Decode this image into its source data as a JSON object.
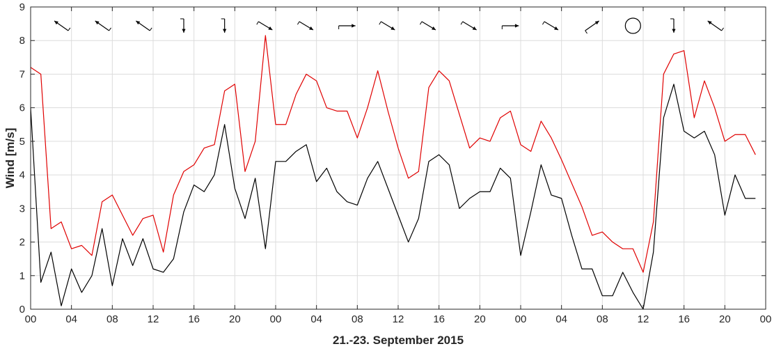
{
  "chart_data": {
    "type": "line",
    "xlabel": "21.-23. September 2015",
    "ylabel": "Wind [m/s]",
    "ylim": [
      0,
      9
    ],
    "yticks": [
      0,
      1,
      2,
      3,
      4,
      5,
      6,
      7,
      8,
      9
    ],
    "xlim_hours": [
      0,
      72
    ],
    "xtick_labels": [
      "00",
      "04",
      "08",
      "12",
      "16",
      "20",
      "00",
      "04",
      "08",
      "12",
      "16",
      "20",
      "00",
      "04",
      "08",
      "12",
      "16",
      "20",
      "00"
    ],
    "grid": true,
    "series": [
      {
        "color": "#e00000",
        "values": [
          7.2,
          7.0,
          2.4,
          2.6,
          1.8,
          1.9,
          1.6,
          3.2,
          3.4,
          2.8,
          2.2,
          2.7,
          2.8,
          1.7,
          3.4,
          4.1,
          4.3,
          4.8,
          4.9,
          6.5,
          6.7,
          4.1,
          5.0,
          8.15,
          5.5,
          5.5,
          6.4,
          7.0,
          6.8,
          6.0,
          5.9,
          5.9,
          5.1,
          6.0,
          7.1,
          5.9,
          4.8,
          3.9,
          4.1,
          6.6,
          7.1,
          6.8,
          5.8,
          4.8,
          5.1,
          5.0,
          5.7,
          5.9,
          4.9,
          4.7,
          5.6,
          5.1,
          4.45,
          3.75,
          3.05,
          2.2,
          2.3,
          2.0,
          1.8,
          1.8,
          1.1,
          2.6,
          7.0,
          7.6,
          7.7,
          5.7,
          6.8,
          6.0,
          5.0,
          5.2,
          5.2,
          4.6
        ]
      },
      {
        "color": "#000000",
        "values": [
          6.0,
          0.8,
          1.7,
          0.1,
          1.2,
          0.5,
          1.0,
          2.4,
          0.7,
          2.1,
          1.3,
          2.1,
          1.2,
          1.1,
          1.5,
          2.9,
          3.7,
          3.5,
          4.0,
          5.5,
          3.6,
          2.7,
          3.9,
          1.8,
          4.4,
          4.4,
          4.7,
          4.9,
          3.8,
          4.2,
          3.5,
          3.2,
          3.1,
          3.9,
          4.4,
          3.6,
          2.8,
          2.0,
          2.7,
          4.4,
          4.6,
          4.3,
          3.0,
          3.3,
          3.5,
          3.5,
          4.2,
          3.9,
          1.6,
          2.9,
          4.3,
          3.4,
          3.3,
          2.2,
          1.2,
          1.2,
          0.4,
          0.4,
          1.1,
          0.5,
          0.0,
          1.7,
          5.7,
          6.7,
          5.3,
          5.1,
          5.3,
          4.6,
          2.8,
          4.0,
          3.3,
          3.3
        ]
      }
    ],
    "wind_direction_markers": [
      {
        "hour": 3,
        "direction": "nw"
      },
      {
        "hour": 7,
        "direction": "nw"
      },
      {
        "hour": 11,
        "direction": "nw"
      },
      {
        "hour": 15,
        "direction": "s"
      },
      {
        "hour": 19,
        "direction": "s"
      },
      {
        "hour": 23,
        "direction": "se"
      },
      {
        "hour": 27,
        "direction": "se"
      },
      {
        "hour": 31,
        "direction": "e"
      },
      {
        "hour": 35,
        "direction": "se"
      },
      {
        "hour": 39,
        "direction": "se"
      },
      {
        "hour": 43,
        "direction": "se"
      },
      {
        "hour": 47,
        "direction": "e"
      },
      {
        "hour": 51,
        "direction": "se"
      },
      {
        "hour": 55,
        "direction": "ne"
      },
      {
        "hour": 59,
        "direction": "calm"
      },
      {
        "hour": 63,
        "direction": "s"
      },
      {
        "hour": 67,
        "direction": "nw"
      }
    ],
    "colors": {
      "axis": "#262626",
      "grid": "#dcdcdc",
      "gust_line": "#e00000",
      "mean_line": "#000000"
    }
  }
}
